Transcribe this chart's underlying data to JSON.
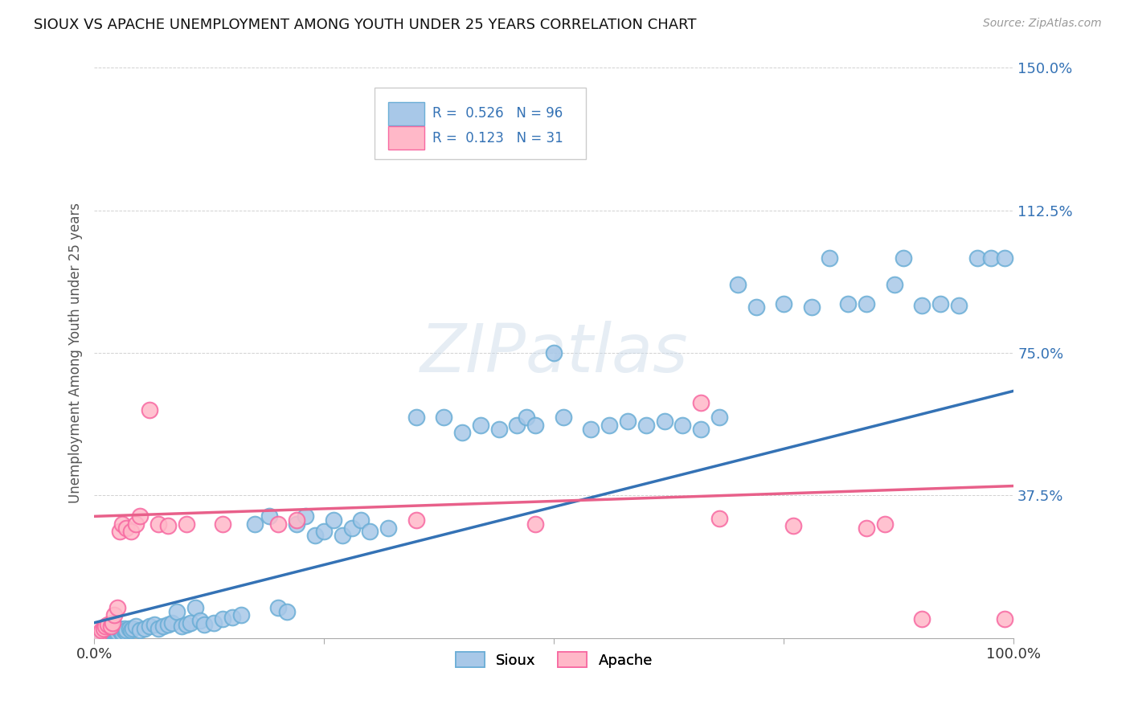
{
  "title": "SIOUX VS APACHE UNEMPLOYMENT AMONG YOUTH UNDER 25 YEARS CORRELATION CHART",
  "source": "Source: ZipAtlas.com",
  "ylabel": "Unemployment Among Youth under 25 years",
  "xlim": [
    0.0,
    1.0
  ],
  "ylim": [
    0.0,
    1.5
  ],
  "xtick_labels": [
    "0.0%",
    "",
    "",
    "",
    "100.0%"
  ],
  "ytick_labels": [
    "",
    "37.5%",
    "75.0%",
    "112.5%",
    "150.0%"
  ],
  "yticks": [
    0.0,
    0.375,
    0.75,
    1.125,
    1.5
  ],
  "xticks": [
    0.0,
    0.25,
    0.5,
    0.75,
    1.0
  ],
  "sioux_color": "#a8c8e8",
  "sioux_edge_color": "#6baed6",
  "apache_color": "#ffb8c8",
  "apache_edge_color": "#f768a1",
  "sioux_line_color": "#3472b5",
  "apache_line_color": "#e8608a",
  "tick_color": "#3472b5",
  "R_sioux": "0.526",
  "N_sioux": "96",
  "R_apache": "0.123",
  "N_apache": "31",
  "watermark": "ZIPatlas",
  "background_color": "#ffffff",
  "sioux_x": [
    0.005,
    0.008,
    0.01,
    0.01,
    0.012,
    0.013,
    0.015,
    0.015,
    0.017,
    0.018,
    0.02,
    0.02,
    0.022,
    0.022,
    0.023,
    0.024,
    0.025,
    0.025,
    0.027,
    0.028,
    0.03,
    0.03,
    0.032,
    0.033,
    0.035,
    0.035,
    0.038,
    0.04,
    0.042,
    0.045,
    0.05,
    0.055,
    0.06,
    0.065,
    0.07,
    0.075,
    0.08,
    0.085,
    0.09,
    0.095,
    0.1,
    0.105,
    0.11,
    0.115,
    0.12,
    0.13,
    0.14,
    0.15,
    0.16,
    0.175,
    0.19,
    0.2,
    0.21,
    0.22,
    0.23,
    0.24,
    0.25,
    0.26,
    0.27,
    0.28,
    0.29,
    0.3,
    0.32,
    0.35,
    0.38,
    0.4,
    0.42,
    0.44,
    0.46,
    0.47,
    0.48,
    0.5,
    0.51,
    0.54,
    0.56,
    0.58,
    0.6,
    0.62,
    0.64,
    0.66,
    0.68,
    0.7,
    0.72,
    0.75,
    0.78,
    0.8,
    0.82,
    0.84,
    0.87,
    0.88,
    0.9,
    0.92,
    0.94,
    0.96,
    0.975,
    0.99
  ],
  "sioux_y": [
    0.01,
    0.008,
    0.012,
    0.015,
    0.01,
    0.015,
    0.008,
    0.012,
    0.01,
    0.015,
    0.01,
    0.02,
    0.008,
    0.015,
    0.012,
    0.02,
    0.01,
    0.015,
    0.025,
    0.02,
    0.01,
    0.015,
    0.02,
    0.025,
    0.015,
    0.02,
    0.025,
    0.02,
    0.025,
    0.03,
    0.02,
    0.025,
    0.03,
    0.035,
    0.025,
    0.03,
    0.035,
    0.04,
    0.07,
    0.03,
    0.035,
    0.04,
    0.08,
    0.045,
    0.035,
    0.04,
    0.05,
    0.055,
    0.06,
    0.3,
    0.32,
    0.08,
    0.07,
    0.3,
    0.32,
    0.27,
    0.28,
    0.31,
    0.27,
    0.29,
    0.31,
    0.28,
    0.29,
    0.58,
    0.58,
    0.54,
    0.56,
    0.55,
    0.56,
    0.58,
    0.56,
    0.75,
    0.58,
    0.55,
    0.56,
    0.57,
    0.56,
    0.57,
    0.56,
    0.55,
    0.58,
    0.93,
    0.87,
    0.88,
    0.87,
    1.0,
    0.88,
    0.88,
    0.93,
    1.0,
    0.875,
    0.88,
    0.875,
    1.0,
    1.0,
    1.0
  ],
  "apache_x": [
    0.005,
    0.008,
    0.01,
    0.012,
    0.015,
    0.018,
    0.02,
    0.022,
    0.025,
    0.028,
    0.03,
    0.035,
    0.04,
    0.045,
    0.05,
    0.06,
    0.07,
    0.08,
    0.1,
    0.14,
    0.2,
    0.22,
    0.35,
    0.48,
    0.66,
    0.68,
    0.76,
    0.84,
    0.86,
    0.9,
    0.99
  ],
  "apache_y": [
    0.01,
    0.02,
    0.025,
    0.03,
    0.035,
    0.03,
    0.04,
    0.06,
    0.08,
    0.28,
    0.3,
    0.29,
    0.28,
    0.3,
    0.32,
    0.6,
    0.3,
    0.295,
    0.3,
    0.3,
    0.3,
    0.31,
    0.31,
    0.3,
    0.62,
    0.315,
    0.295,
    0.29,
    0.3,
    0.05,
    0.05
  ],
  "sioux_line_x0": 0.0,
  "sioux_line_y0": 0.04,
  "sioux_line_x1": 1.0,
  "sioux_line_y1": 0.65,
  "apache_line_x0": 0.0,
  "apache_line_y0": 0.32,
  "apache_line_x1": 1.0,
  "apache_line_y1": 0.4
}
